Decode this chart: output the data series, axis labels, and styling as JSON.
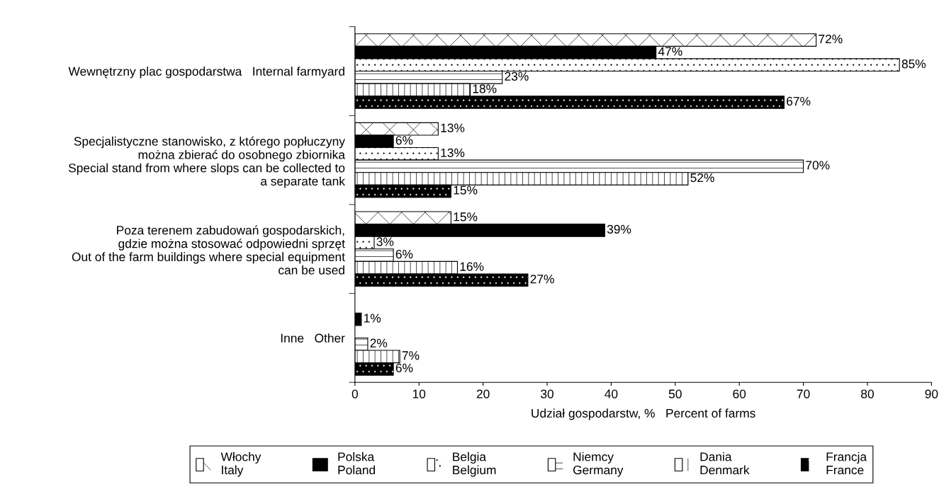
{
  "chart_data": {
    "type": "bar",
    "orientation": "horizontal",
    "xlabel": "Udział gospodarstw, %   Percent of farms",
    "categories": [
      "Wewnętrzny plac gospodarstwa   Internal farmyard",
      "Specjalistyczne stanowisko, z którego popłuczyny\nmożna zbierać do osobnego zbiornika\nSpecial stand from where slops can be collected to\na separate tank",
      "Poza terenem zabudowań gospodarskich,\ngdzie można stosować odpowiedni sprzęt\nOut of the farm buildings where special equipment\ncan be used",
      "Inne   Other"
    ],
    "series": [
      {
        "name": "Włochy\nItaly",
        "color": "#ffffff",
        "values": [
          72,
          13,
          15,
          null
        ],
        "value_labels": [
          "72%",
          "13%",
          "15%",
          null
        ]
      },
      {
        "name": "Polska\nPoland",
        "color": "#000000",
        "values": [
          47,
          6,
          39,
          1
        ],
        "value_labels": [
          "47%",
          "6%",
          "39%",
          "1%"
        ]
      },
      {
        "name": "Belgia\nBelgium",
        "color": "#ffffff",
        "values": [
          85,
          13,
          3,
          null
        ],
        "value_labels": [
          "85%",
          "13%",
          "3%",
          null
        ]
      },
      {
        "name": "Niemcy\nGermany",
        "color": "#ffffff",
        "values": [
          23,
          70,
          6,
          2
        ],
        "value_labels": [
          "23%",
          "70%",
          "6%",
          "2%"
        ]
      },
      {
        "name": "Dania\nDenmark",
        "color": "#ffffff",
        "values": [
          18,
          52,
          16,
          7
        ],
        "value_labels": [
          "18%",
          "52%",
          "16%",
          "7%"
        ]
      },
      {
        "name": "Francja\nFrance",
        "color": "#000000",
        "values": [
          67,
          15,
          27,
          6
        ],
        "value_labels": [
          "67%",
          "15%",
          "27%",
          "6%"
        ]
      }
    ],
    "xlim": [
      0,
      90
    ],
    "xticks": [
      0,
      10,
      20,
      30,
      40,
      50,
      60,
      70,
      80,
      90
    ],
    "grid": false,
    "legend": "bottom"
  }
}
